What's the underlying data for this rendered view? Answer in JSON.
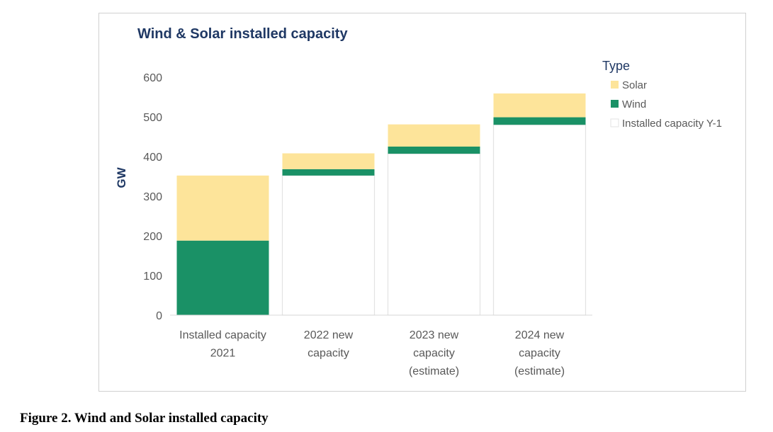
{
  "chart_data": {
    "type": "bar",
    "stacked": true,
    "title": "Wind & Solar installed capacity",
    "ylabel": "GW",
    "xlabel": "",
    "ylim": [
      0,
      600
    ],
    "yticks": [
      0,
      100,
      200,
      300,
      400,
      500,
      600
    ],
    "categories": [
      [
        "Installed capacity",
        "2021"
      ],
      [
        "2022 new",
        "capacity"
      ],
      [
        "2023 new",
        "capacity",
        "(estimate)"
      ],
      [
        "2024 new",
        "capacity",
        "(estimate)"
      ]
    ],
    "legend_title": "Type",
    "legend_position": "right",
    "grid": false,
    "series": [
      {
        "name": "Installed capacity Y-1",
        "values": [
          0,
          352,
          407,
          480
        ],
        "color": "#ffffff",
        "stroke": "#e3e3e3"
      },
      {
        "name": "Wind",
        "values": [
          188,
          16,
          18,
          19
        ],
        "color": "#1a9166"
      },
      {
        "name": "Solar",
        "values": [
          164,
          40,
          56,
          60
        ],
        "color": "#fde49a"
      }
    ],
    "legend_order": [
      "Solar",
      "Wind",
      "Installed capacity Y-1"
    ]
  },
  "caption": "Figure 2. Wind and Solar installed capacity",
  "colors": {
    "title": "#1f3864",
    "axis_text": "#595959",
    "axis_line": "#d9d9d9"
  }
}
